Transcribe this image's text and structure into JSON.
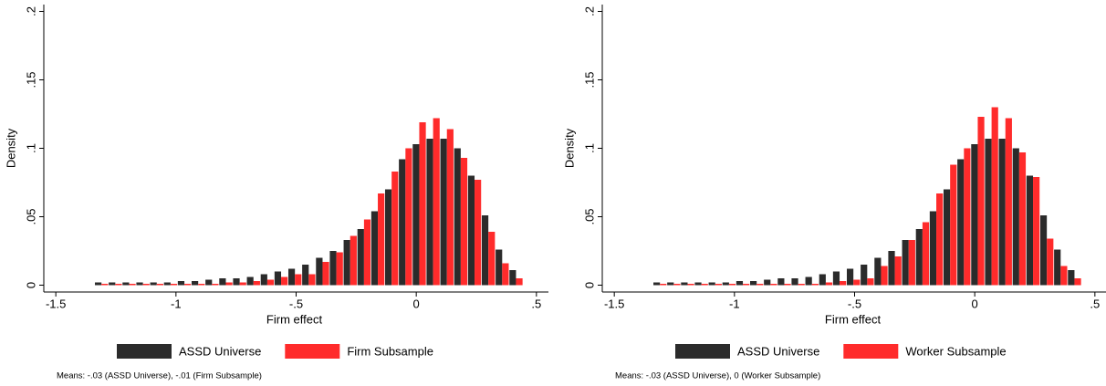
{
  "chart_data": [
    {
      "type": "bar",
      "x_label": "Firm effect",
      "y_label": "Density",
      "note": "Means: -.03 (ASSD Universe), -.01 (Firm Subsample)",
      "x": [
        -1.31,
        -1.2525,
        -1.195,
        -1.1375,
        -1.08,
        -1.0225,
        -0.965,
        -0.9075,
        -0.85,
        -0.7925,
        -0.735,
        -0.6775,
        -0.62,
        -0.5625,
        -0.505,
        -0.4475,
        -0.39,
        -0.3325,
        -0.275,
        -0.2175,
        -0.16,
        -0.1025,
        -0.045,
        0.0125,
        0.07,
        0.1275,
        0.185,
        0.2425,
        0.3,
        0.3575,
        0.415
      ],
      "series": [
        {
          "name": "ASSD Universe",
          "color": "#2b2b2b",
          "values": [
            0.002,
            0.002,
            0.002,
            0.002,
            0.002,
            0.002,
            0.003,
            0.003,
            0.004,
            0.005,
            0.005,
            0.006,
            0.008,
            0.01,
            0.012,
            0.015,
            0.02,
            0.025,
            0.033,
            0.041,
            0.054,
            0.07,
            0.092,
            0.103,
            0.107,
            0.107,
            0.1,
            0.08,
            0.051,
            0.026,
            0.011
          ]
        },
        {
          "name": "Firm Subsample",
          "color": "#ff2b2b",
          "values": [
            0.001,
            0.001,
            0.001,
            0.001,
            0.001,
            0.001,
            0.001,
            0.001,
            0.001,
            0.002,
            0.002,
            0.003,
            0.004,
            0.006,
            0.008,
            0.008,
            0.017,
            0.024,
            0.036,
            0.048,
            0.067,
            0.083,
            0.1,
            0.119,
            0.122,
            0.114,
            0.093,
            0.077,
            0.039,
            0.016,
            0.005
          ]
        }
      ],
      "xlim": [
        -1.55,
        0.55
      ],
      "xticks": [
        {
          "value": -1.5,
          "label": "-1.5"
        },
        -1,
        {
          "value": -0.5,
          "label": "-.5"
        },
        0,
        {
          "value": 0.5,
          "label": ".5"
        }
      ],
      "ylim": [
        -0.005,
        0.205
      ],
      "yticks": [
        0,
        {
          "value": 0.05,
          "label": ".05"
        },
        {
          "value": 0.1,
          "label": ".1"
        },
        {
          "value": 0.15,
          "label": ".15"
        },
        {
          "value": 0.2,
          "label": ".2"
        }
      ]
    },
    {
      "type": "bar",
      "x_label": "Firm effect",
      "y_label": "Density",
      "note": "Means: -.03 (ASSD Universe), 0 (Worker Subsample)",
      "x": [
        -1.31,
        -1.2525,
        -1.195,
        -1.1375,
        -1.08,
        -1.0225,
        -0.965,
        -0.9075,
        -0.85,
        -0.7925,
        -0.735,
        -0.6775,
        -0.62,
        -0.5625,
        -0.505,
        -0.4475,
        -0.39,
        -0.3325,
        -0.275,
        -0.2175,
        -0.16,
        -0.1025,
        -0.045,
        0.0125,
        0.07,
        0.1275,
        0.185,
        0.2425,
        0.3,
        0.3575,
        0.415
      ],
      "series": [
        {
          "name": "ASSD Universe",
          "color": "#2b2b2b",
          "values": [
            0.002,
            0.002,
            0.002,
            0.002,
            0.002,
            0.002,
            0.003,
            0.003,
            0.004,
            0.005,
            0.005,
            0.006,
            0.008,
            0.01,
            0.012,
            0.015,
            0.02,
            0.025,
            0.033,
            0.041,
            0.054,
            0.07,
            0.092,
            0.103,
            0.107,
            0.107,
            0.1,
            0.08,
            0.051,
            0.026,
            0.011
          ]
        },
        {
          "name": "Worker Subsample",
          "color": "#ff2b2b",
          "values": [
            0.001,
            0.001,
            0.001,
            0.001,
            0.001,
            0.001,
            0.001,
            0.001,
            0.001,
            0.001,
            0.001,
            0.001,
            0.002,
            0.003,
            0.004,
            0.005,
            0.014,
            0.021,
            0.033,
            0.046,
            0.067,
            0.088,
            0.1,
            0.123,
            0.13,
            0.122,
            0.097,
            0.079,
            0.034,
            0.014,
            0.005
          ]
        }
      ],
      "xlim": [
        -1.55,
        0.55
      ],
      "xticks": [
        {
          "value": -1.5,
          "label": "-1.5"
        },
        -1,
        {
          "value": -0.5,
          "label": "-.5"
        },
        0,
        {
          "value": 0.5,
          "label": ".5"
        }
      ],
      "ylim": [
        -0.005,
        0.205
      ],
      "yticks": [
        0,
        {
          "value": 0.05,
          "label": ".05"
        },
        {
          "value": 0.1,
          "label": ".1"
        },
        {
          "value": 0.15,
          "label": ".15"
        },
        {
          "value": 0.2,
          "label": ".2"
        }
      ]
    }
  ]
}
